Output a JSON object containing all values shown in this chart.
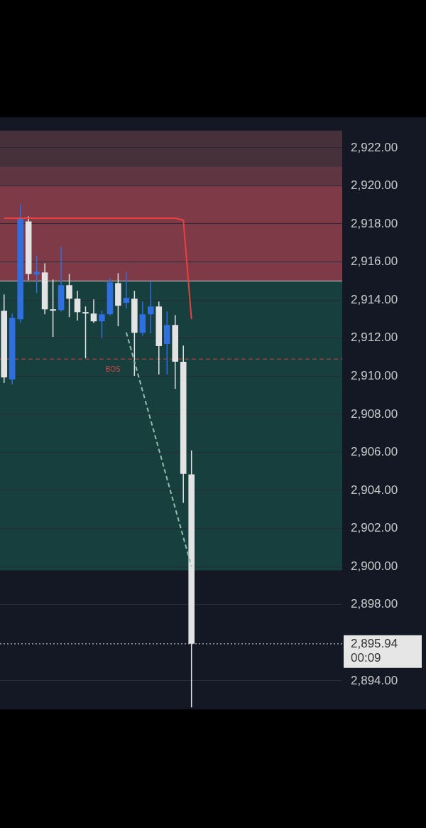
{
  "chart_data": {
    "type": "candlestick",
    "categories": [
      null,
      null,
      null,
      null,
      null,
      null,
      null,
      null,
      null,
      null,
      null,
      null,
      null,
      null,
      null,
      null,
      null,
      null,
      null,
      null,
      null,
      null,
      null,
      null,
      null,
      null,
      null,
      null,
      null,
      null,
      null,
      null,
      null,
      null,
      null,
      null,
      null,
      null,
      null,
      null,
      null,
      null
    ],
    "ohlc": [
      [
        2913.44,
        2914.29,
        2909.64,
        2909.94
      ],
      [
        2909.83,
        2913.29,
        2909.57,
        2913.06
      ],
      [
        2912.99,
        2919.02,
        2912.8,
        2918.28
      ],
      [
        2918.13,
        2918.39,
        2915.04,
        2915.37
      ],
      [
        2915.34,
        2916.34,
        2914.37,
        2915.48
      ],
      [
        2915.45,
        2915.93,
        2913.25,
        2913.51
      ],
      [
        2913.51,
        2915.08,
        2912.06,
        2913.44
      ],
      [
        2913.47,
        2916.79,
        2913.4,
        2914.78
      ],
      [
        2914.78,
        2915.37,
        2913.1,
        2914.07
      ],
      [
        2914.07,
        2914.48,
        2912.92,
        2913.36
      ],
      [
        2913.36,
        2913.66,
        2910.94,
        2913.29
      ],
      [
        2913.29,
        2914.03,
        2912.8,
        2912.88
      ],
      [
        2912.88,
        2913.44,
        2911.99,
        2913.25
      ],
      [
        2913.25,
        2915.15,
        2913.18,
        2914.93
      ],
      [
        2914.89,
        2915.41,
        2912.62,
        2913.7
      ],
      [
        2913.85,
        2915.48,
        2913.55,
        2914.11
      ],
      [
        2914.07,
        2914.48,
        2910.01,
        2912.28
      ],
      [
        2912.28,
        2913.92,
        2912.13,
        2913.25
      ],
      [
        2913.25,
        2914.96,
        2912.25,
        2913.66
      ],
      [
        2913.66,
        2913.92,
        2910.09,
        2911.58
      ],
      [
        2911.69,
        2913.4,
        2910.09,
        2912.69
      ],
      [
        2912.69,
        2913.21,
        2909.34,
        2910.76
      ],
      [
        2910.76,
        2911.61,
        2903.35,
        2904.87
      ],
      [
        2904.84,
        2906.1,
        2892.6,
        2895.94
      ],
      null,
      null,
      null,
      null,
      null,
      null,
      null,
      null,
      null,
      null,
      null,
      null,
      null,
      null,
      null,
      null,
      null,
      null
    ],
    "colors": [
      "#e3e3e3",
      "#2f6fe0",
      "#2f6fe0",
      "#e3e3e3",
      "#2f6fe0",
      "#e3e3e3",
      "#e3e3e3",
      "#2f6fe0",
      "#e3e3e3",
      "#e3e3e3",
      "#e3e3e3",
      "#e3e3e3",
      "#2f6fe0",
      "#2f6fe0",
      "#e3e3e3",
      "#2f6fe0",
      "#e3e3e3",
      "#2f6fe0",
      "#2f6fe0",
      "#e3e3e3",
      "#2f6fe0",
      "#e3e3e3",
      "#e3e3e3",
      "#e3e3e3",
      null,
      null,
      null,
      null,
      null,
      null,
      null,
      null,
      null,
      null,
      null,
      null,
      null,
      null,
      null,
      null,
      null,
      null
    ],
    "series": [
      {
        "type": "line",
        "color": "#e8413f",
        "line_style": "solid",
        "values": [
          2918.3,
          2918.3,
          2918.3,
          2918.3,
          2918.3,
          2918.3,
          2918.3,
          2918.3,
          2918.3,
          2918.3,
          2918.3,
          2918.3,
          2918.3,
          2918.3,
          2918.3,
          2918.3,
          2918.3,
          2918.3,
          2918.3,
          2918.3,
          2918.3,
          2918.3,
          2918.2,
          2913.0,
          null,
          null,
          null,
          null,
          null,
          null,
          null,
          null,
          null,
          null,
          null,
          null,
          null,
          null,
          null,
          null,
          null,
          null
        ]
      },
      {
        "type": "line",
        "color": "#8fbfae",
        "line_style": "dashed",
        "values": [
          null,
          null,
          null,
          null,
          null,
          null,
          null,
          null,
          null,
          null,
          null,
          null,
          null,
          null,
          null,
          2912.3,
          null,
          null,
          null,
          null,
          null,
          null,
          null,
          2900.0,
          null,
          null,
          null,
          null,
          null,
          null,
          null,
          null,
          null,
          null,
          null,
          null,
          null,
          null,
          null,
          null,
          null,
          null
        ]
      }
    ],
    "ylim": [
      2892.5,
      2923.6
    ],
    "yticks": [
      {
        "value": 2894,
        "label": "2,894.00"
      },
      {
        "value": 2898,
        "label": "2,898.00"
      },
      {
        "value": 2900,
        "label": "2,900.00"
      },
      {
        "value": 2902,
        "label": "2,902.00"
      },
      {
        "value": 2904,
        "label": "2,904.00"
      },
      {
        "value": 2906,
        "label": "2,906.00"
      },
      {
        "value": 2908,
        "label": "2,908.00"
      },
      {
        "value": 2910,
        "label": "2,910.00"
      },
      {
        "value": 2912,
        "label": "2,912.00"
      },
      {
        "value": 2914,
        "label": "2,914.00"
      },
      {
        "value": 2916,
        "label": "2,916.00"
      },
      {
        "value": 2918,
        "label": "2,918.00"
      },
      {
        "value": 2920,
        "label": "2,920.00"
      },
      {
        "value": 2922,
        "label": "2,922.00"
      }
    ],
    "bands": [
      {
        "axis": "y",
        "from": 2913.6,
        "to": 2922.9,
        "color": "#46303a"
      },
      {
        "axis": "y",
        "from": 2917.1,
        "to": 2921.0,
        "color": "#5e3540"
      },
      {
        "axis": "y",
        "from": 2915.0,
        "to": 2920.0,
        "color": "#7e3a46"
      },
      {
        "axis": "y",
        "from": 2899.8,
        "to": 2915.0,
        "color": "#173f3d"
      }
    ],
    "ref_lines": [
      {
        "axis": "y",
        "value": 2915.0,
        "color": "#c8c8c8",
        "line_style": "solid"
      },
      {
        "axis": "y",
        "value": 2910.9,
        "label": "BOS",
        "color": "#d04545",
        "line_style": "dashed"
      },
      {
        "axis": "y",
        "value": 2895.94,
        "color": "#e0e0e0",
        "line_style": "dotted"
      }
    ],
    "annotations": [
      "2,895.94",
      "00:09"
    ],
    "grid": "y",
    "legend": false,
    "marker": "none"
  }
}
